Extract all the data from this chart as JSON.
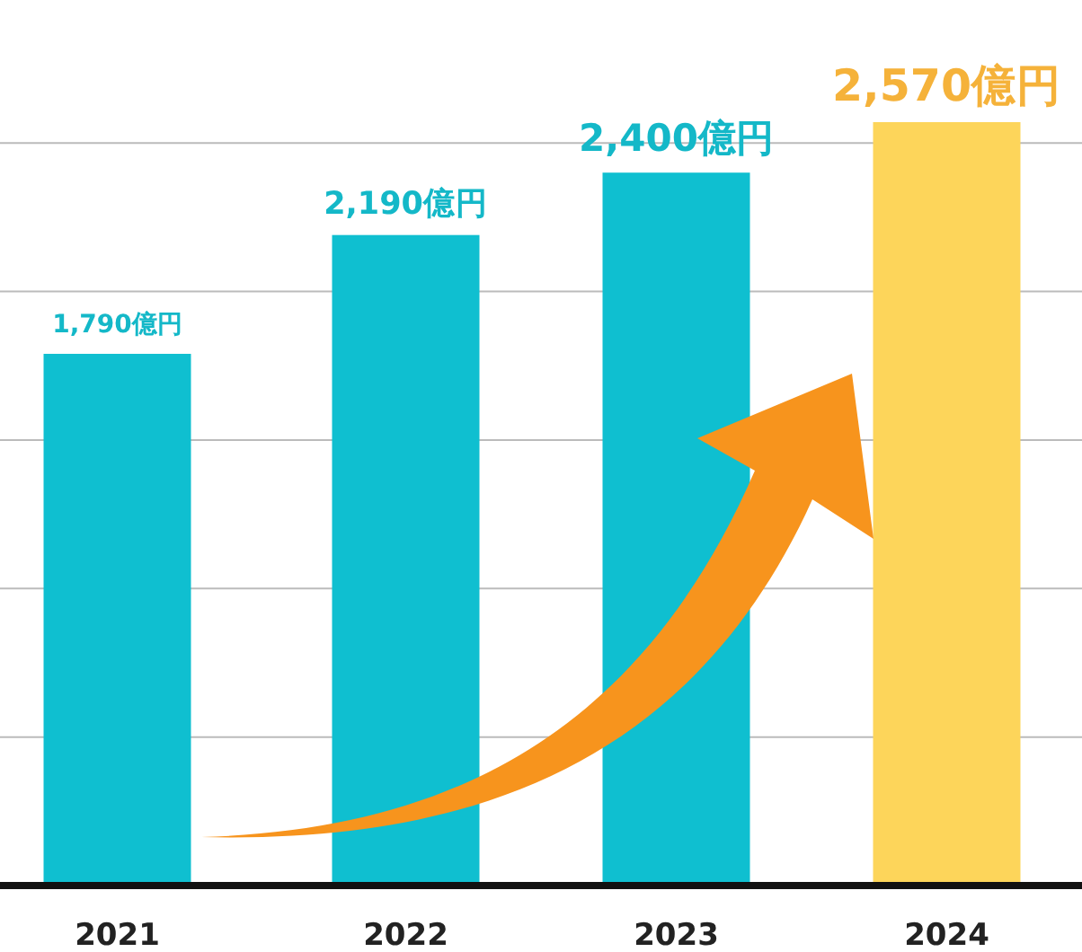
{
  "chart_data": {
    "type": "bar",
    "categories": [
      "2021",
      "2022",
      "2023",
      "2024"
    ],
    "values": [
      1790,
      2190,
      2400,
      2570
    ],
    "colors": [
      "#0fbfd0",
      "#0fbfd0",
      "#0fbfd0",
      "#fdd55a"
    ],
    "value_labels": [
      "1,790億円",
      "2,190億円",
      "2,400億円",
      "2,570億円"
    ],
    "yticks": [
      {
        "value": 500,
        "label": null
      },
      {
        "value": 1000,
        "label": null
      },
      {
        "value": 1500,
        "label": null
      },
      {
        "value": 2000,
        "label": null
      },
      {
        "value": 2500,
        "label": null
      }
    ],
    "grid": "y",
    "tick_labels": "x"
  }
}
